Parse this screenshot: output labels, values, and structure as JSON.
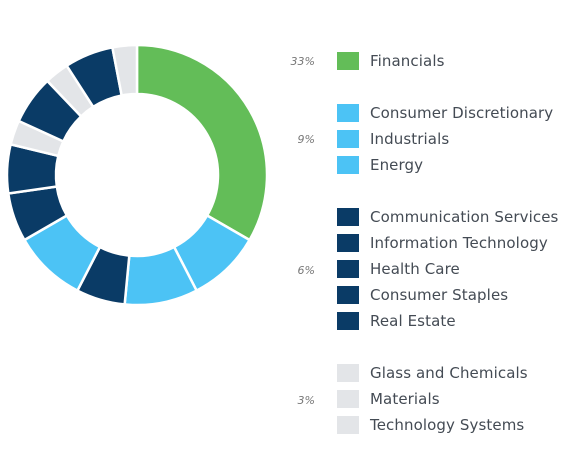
{
  "chart_data": {
    "type": "pie",
    "donut": true,
    "colors": {
      "green": "#63bd58",
      "light_blue": "#4cc3f5",
      "dark_blue": "#0a3b66",
      "light_gray": "#e3e5e8"
    },
    "groups": [
      {
        "percent_label": "33%",
        "color_key": "green"
      },
      {
        "percent_label": "9%",
        "color_key": "light_blue"
      },
      {
        "percent_label": "6%",
        "color_key": "dark_blue"
      },
      {
        "percent_label": "3%",
        "color_key": "light_gray"
      }
    ],
    "slices": [
      {
        "label": "Financials",
        "value": 33,
        "color_key": "green"
      },
      {
        "label": "Consumer Discretionary",
        "value": 9,
        "color_key": "light_blue"
      },
      {
        "label": "Industrials",
        "value": 9,
        "color_key": "light_blue"
      },
      {
        "label": "Energy",
        "value": 9,
        "color_key": "light_blue"
      },
      {
        "label": "Communication Services",
        "value": 6,
        "color_key": "dark_blue"
      },
      {
        "label": "Information Technology",
        "value": 6,
        "color_key": "dark_blue"
      },
      {
        "label": "Health Care",
        "value": 6,
        "color_key": "dark_blue"
      },
      {
        "label": "Consumer Staples",
        "value": 6,
        "color_key": "dark_blue"
      },
      {
        "label": "Real Estate",
        "value": 6,
        "color_key": "dark_blue"
      },
      {
        "label": "Glass and Chemicals",
        "value": 3,
        "color_key": "light_gray"
      },
      {
        "label": "Materials",
        "value": 3,
        "color_key": "light_gray"
      },
      {
        "label": "Technology Systems",
        "value": 3,
        "color_key": "light_gray"
      }
    ],
    "ring_order": [
      0,
      1,
      2,
      4,
      3,
      5,
      6,
      9,
      7,
      10,
      8,
      11
    ]
  }
}
